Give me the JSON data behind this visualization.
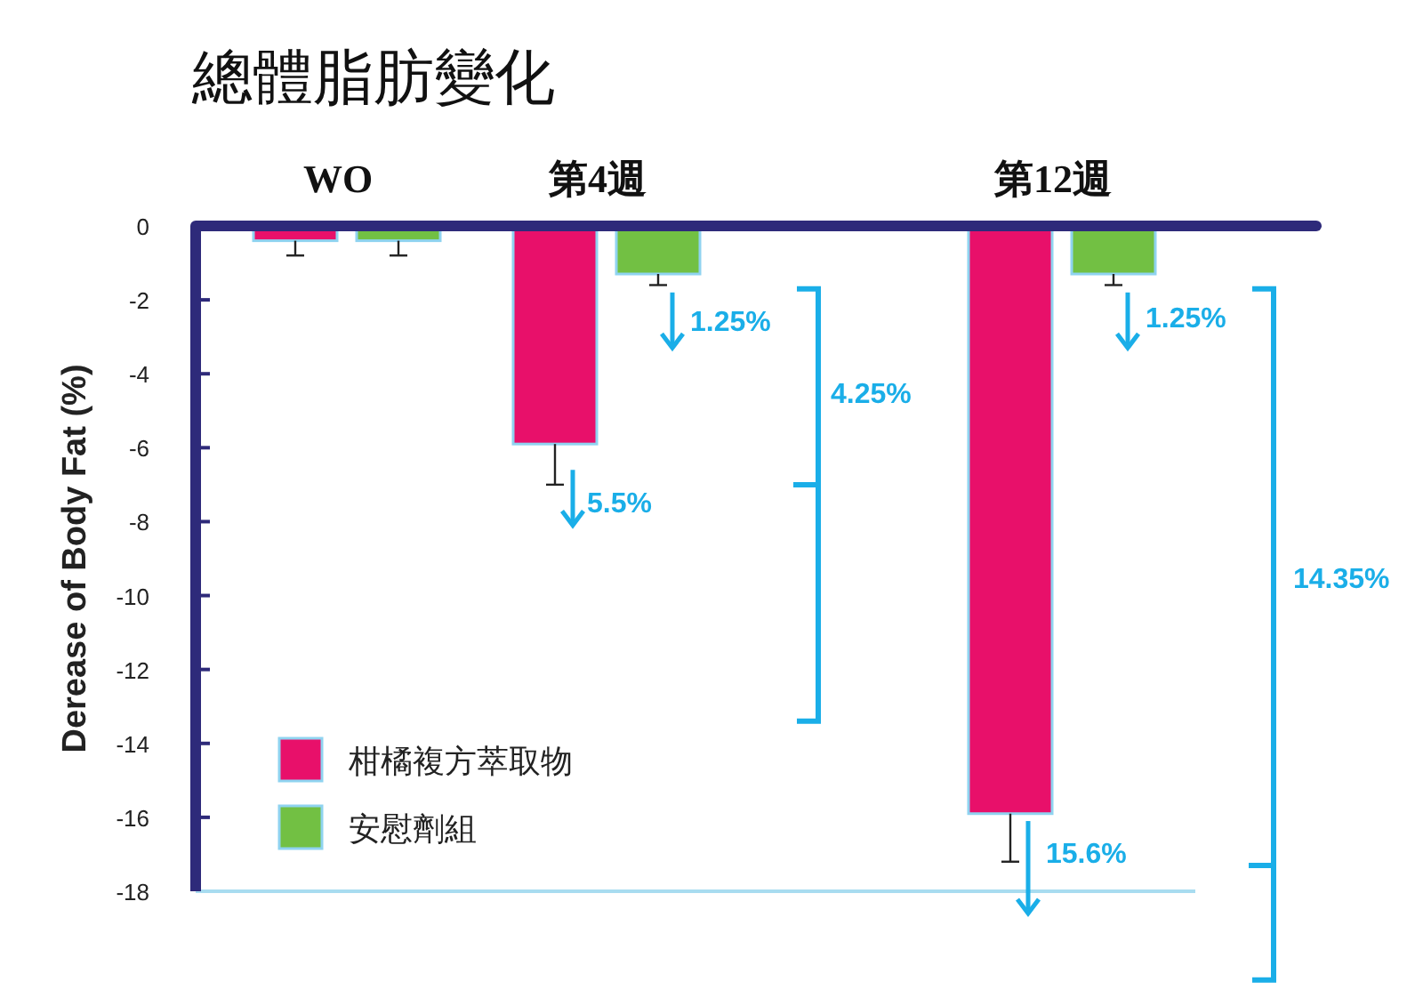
{
  "chart_data": {
    "type": "bar",
    "title": "總體脂肪變化",
    "ylabel": "Derease of Body Fat (%)",
    "categories": [
      "WO",
      "第4週",
      "第12週"
    ],
    "series": [
      {
        "name": "柑橘複方萃取物",
        "color": "#e8106a",
        "values": [
          -0.4,
          -5.9,
          -15.9
        ],
        "errors": [
          [
            -0.8,
            -0.4
          ],
          [
            -7.0,
            -5.9
          ],
          [
            -17.2,
            -15.9
          ]
        ]
      },
      {
        "name": "安慰劑組",
        "color": "#72c043",
        "values": [
          -0.4,
          -1.3,
          -1.3
        ],
        "errors": [
          [
            -0.8,
            -0.4
          ],
          [
            -1.6,
            -1.3
          ],
          [
            -1.6,
            -1.3
          ]
        ]
      }
    ],
    "ylim": [
      -18,
      0
    ],
    "yticks": [
      0,
      -2,
      -4,
      -6,
      -8,
      -10,
      -12,
      -14,
      -16,
      -18
    ],
    "ref_lines": [
      {
        "axis": "y",
        "value": -18,
        "color": "#a8dcf0"
      }
    ],
    "annotations": [
      "1.25%",
      "5.5%",
      "4.25%",
      "1.25%",
      "15.6%",
      "14.35%"
    ],
    "legend": "bottom left",
    "grid": false
  }
}
